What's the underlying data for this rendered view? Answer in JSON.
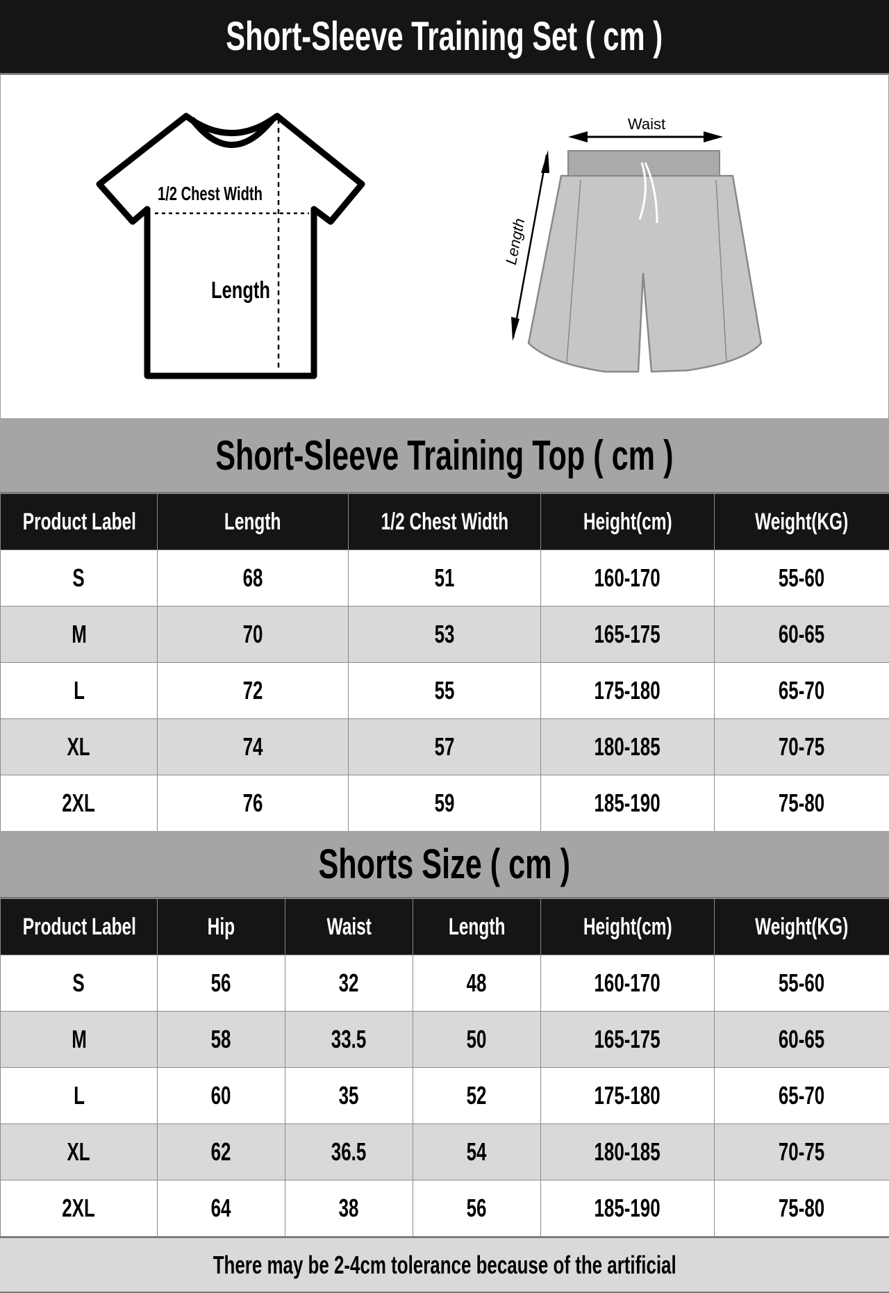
{
  "title": "Short-Sleeve Training Set ( cm )",
  "illustration": {
    "tshirt_labels": {
      "chest": "1/2 Chest Width",
      "length": "Length"
    },
    "shorts_labels": {
      "waist": "Waist",
      "length": "Length"
    }
  },
  "top_table": {
    "title": "Short-Sleeve Training Top ( cm )",
    "headers": [
      "Product Label",
      "Length",
      "1/2 Chest Width",
      "Height(cm)",
      "Weight(KG)"
    ],
    "rows": [
      [
        "S",
        "68",
        "51",
        "160-170",
        "55-60"
      ],
      [
        "M",
        "70",
        "53",
        "165-175",
        "60-65"
      ],
      [
        "L",
        "72",
        "55",
        "175-180",
        "65-70"
      ],
      [
        "XL",
        "74",
        "57",
        "180-185",
        "70-75"
      ],
      [
        "2XL",
        "76",
        "59",
        "185-190",
        "75-80"
      ]
    ]
  },
  "shorts_table": {
    "title": "Shorts Size ( cm )",
    "headers": [
      "Product Label",
      "Hip",
      "Waist",
      "Length",
      "Height(cm)",
      "Weight(KG)"
    ],
    "rows": [
      [
        "S",
        "56",
        "32",
        "48",
        "160-170",
        "55-60"
      ],
      [
        "M",
        "58",
        "33.5",
        "50",
        "165-175",
        "60-65"
      ],
      [
        "L",
        "60",
        "35",
        "52",
        "175-180",
        "65-70"
      ],
      [
        "XL",
        "62",
        "36.5",
        "54",
        "180-185",
        "70-75"
      ],
      [
        "2XL",
        "64",
        "38",
        "56",
        "185-190",
        "75-80"
      ]
    ]
  },
  "footer": "There may be 2-4cm tolerance because of the artificial"
}
